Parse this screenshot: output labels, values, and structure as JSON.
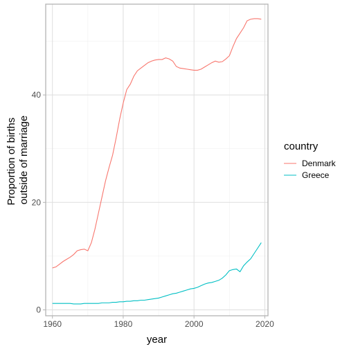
{
  "chart_data": {
    "type": "line",
    "title": "",
    "xlabel": "year",
    "ylabel_lines": [
      "Proportion of births",
      "outside of marriage"
    ],
    "xlim": [
      1958.1,
      2020.9
    ],
    "ylim": [
      -1.1,
      56.9
    ],
    "x_ticks": [
      1960,
      1980,
      2000,
      2020
    ],
    "y_ticks": [
      0,
      20,
      40
    ],
    "grid": true,
    "legend": {
      "title": "country",
      "position": "right"
    },
    "series": [
      {
        "name": "Denmark",
        "color": "#F8766D",
        "points": [
          [
            1960,
            7.8
          ],
          [
            1961,
            8.0
          ],
          [
            1962,
            8.5
          ],
          [
            1963,
            9.0
          ],
          [
            1964,
            9.4
          ],
          [
            1965,
            9.8
          ],
          [
            1966,
            10.3
          ],
          [
            1967,
            11.0
          ],
          [
            1968,
            11.2
          ],
          [
            1969,
            11.3
          ],
          [
            1970,
            11.0
          ],
          [
            1971,
            12.5
          ],
          [
            1972,
            15.0
          ],
          [
            1973,
            18.0
          ],
          [
            1974,
            21.0
          ],
          [
            1975,
            24.0
          ],
          [
            1976,
            26.5
          ],
          [
            1977,
            28.8
          ],
          [
            1978,
            32.0
          ],
          [
            1979,
            35.5
          ],
          [
            1980,
            38.5
          ],
          [
            1981,
            41.0
          ],
          [
            1982,
            42.0
          ],
          [
            1983,
            43.5
          ],
          [
            1984,
            44.5
          ],
          [
            1985,
            45.0
          ],
          [
            1986,
            45.5
          ],
          [
            1987,
            46.0
          ],
          [
            1988,
            46.3
          ],
          [
            1989,
            46.5
          ],
          [
            1990,
            46.6
          ],
          [
            1991,
            46.6
          ],
          [
            1992,
            46.9
          ],
          [
            1993,
            46.7
          ],
          [
            1994,
            46.3
          ],
          [
            1995,
            45.3
          ],
          [
            1996,
            45.0
          ],
          [
            1997,
            44.9
          ],
          [
            1998,
            44.8
          ],
          [
            1999,
            44.7
          ],
          [
            2000,
            44.6
          ],
          [
            2001,
            44.6
          ],
          [
            2002,
            44.8
          ],
          [
            2003,
            45.2
          ],
          [
            2004,
            45.6
          ],
          [
            2005,
            46.0
          ],
          [
            2006,
            46.3
          ],
          [
            2007,
            46.1
          ],
          [
            2008,
            46.2
          ],
          [
            2009,
            46.7
          ],
          [
            2010,
            47.3
          ],
          [
            2011,
            49.0
          ],
          [
            2012,
            50.5
          ],
          [
            2013,
            51.5
          ],
          [
            2014,
            52.5
          ],
          [
            2015,
            53.8
          ],
          [
            2016,
            54.1
          ],
          [
            2017,
            54.2
          ],
          [
            2018,
            54.2
          ],
          [
            2019,
            54.1
          ]
        ]
      },
      {
        "name": "Greece",
        "color": "#00BFC4",
        "points": [
          [
            1960,
            1.2
          ],
          [
            1961,
            1.2
          ],
          [
            1962,
            1.2
          ],
          [
            1963,
            1.2
          ],
          [
            1964,
            1.2
          ],
          [
            1965,
            1.2
          ],
          [
            1966,
            1.1
          ],
          [
            1967,
            1.1
          ],
          [
            1968,
            1.1
          ],
          [
            1969,
            1.2
          ],
          [
            1970,
            1.2
          ],
          [
            1971,
            1.2
          ],
          [
            1972,
            1.2
          ],
          [
            1973,
            1.2
          ],
          [
            1974,
            1.3
          ],
          [
            1975,
            1.3
          ],
          [
            1976,
            1.3
          ],
          [
            1977,
            1.4
          ],
          [
            1978,
            1.4
          ],
          [
            1979,
            1.5
          ],
          [
            1980,
            1.5
          ],
          [
            1981,
            1.6
          ],
          [
            1982,
            1.6
          ],
          [
            1983,
            1.7
          ],
          [
            1984,
            1.7
          ],
          [
            1985,
            1.8
          ],
          [
            1986,
            1.8
          ],
          [
            1987,
            1.9
          ],
          [
            1988,
            2.0
          ],
          [
            1989,
            2.1
          ],
          [
            1990,
            2.2
          ],
          [
            1991,
            2.4
          ],
          [
            1992,
            2.6
          ],
          [
            1993,
            2.8
          ],
          [
            1994,
            3.0
          ],
          [
            1995,
            3.1
          ],
          [
            1996,
            3.3
          ],
          [
            1997,
            3.5
          ],
          [
            1998,
            3.7
          ],
          [
            1999,
            3.9
          ],
          [
            2000,
            4.0
          ],
          [
            2001,
            4.2
          ],
          [
            2002,
            4.5
          ],
          [
            2003,
            4.8
          ],
          [
            2004,
            5.0
          ],
          [
            2005,
            5.1
          ],
          [
            2006,
            5.3
          ],
          [
            2007,
            5.5
          ],
          [
            2008,
            5.9
          ],
          [
            2009,
            6.5
          ],
          [
            2010,
            7.3
          ],
          [
            2011,
            7.5
          ],
          [
            2012,
            7.6
          ],
          [
            2013,
            7.1
          ],
          [
            2014,
            8.2
          ],
          [
            2015,
            8.9
          ],
          [
            2016,
            9.5
          ],
          [
            2017,
            10.5
          ],
          [
            2018,
            11.5
          ],
          [
            2019,
            12.5
          ]
        ]
      }
    ]
  }
}
